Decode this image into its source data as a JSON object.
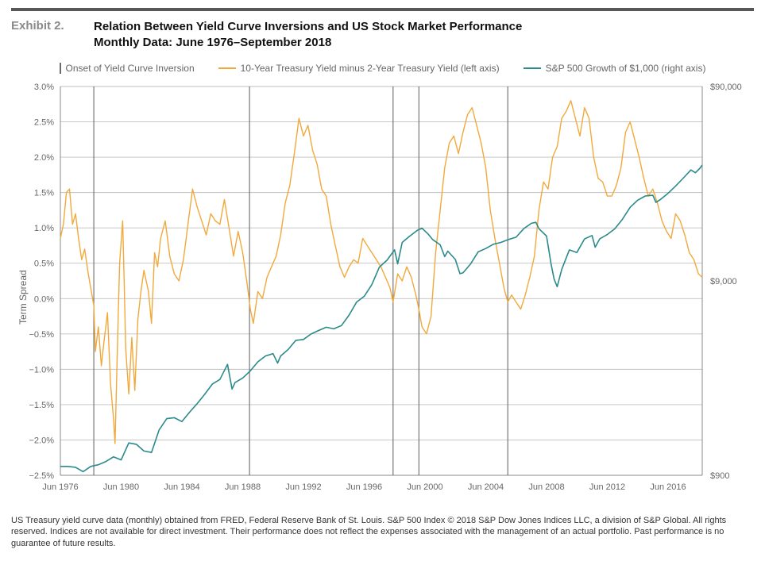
{
  "exhibit_number": "Exhibit 2.",
  "title_line1": "Relation Between Yield Curve Inversions and US Stock Market Performance",
  "title_line2": "Monthly Data: June 1976–September 2018",
  "legend": {
    "inversion": "Onset of Yield Curve Inversion",
    "spread": "10-Year Treasury Yield minus 2-Year Treasury Yield (left axis)",
    "sp500": "S&P 500 Growth of $1,000 (right axis)"
  },
  "left_axis": {
    "title": "Term Spread",
    "min": -2.5,
    "max": 3.0,
    "step": 0.5,
    "ticks": [
      "3.0%",
      "2.5%",
      "2.0%",
      "1.5%",
      "1.0%",
      "0.5%",
      "0.0%",
      "−0.5%",
      "−1.0%",
      "−1.5%",
      "−2.0%",
      "−2.5%"
    ]
  },
  "right_axis": {
    "type": "log",
    "ticks": [
      {
        "value": 90000,
        "label": "$90,000"
      },
      {
        "value": 9000,
        "label": "$9,000"
      },
      {
        "value": 900,
        "label": "$900"
      }
    ]
  },
  "x_axis": {
    "min": 1976.5,
    "max": 2018.75,
    "tick_years": [
      1976,
      1980,
      1984,
      1988,
      1992,
      1996,
      2000,
      2004,
      2008,
      2012,
      2016
    ],
    "tick_label_prefix": "Jun "
  },
  "inversion_years": [
    1978.7,
    1988.95,
    1998.4,
    2000.1,
    2005.95
  ],
  "colors": {
    "spread": "#f2a93c",
    "sp500": "#2b8a8a",
    "inversion": "#6b6b6b",
    "grid": "#bfbfbf",
    "axis": "#888888",
    "text": "#666666",
    "legend_text": "#707070"
  },
  "line_width": {
    "spread": 1.4,
    "sp500": 1.6,
    "inversion": 1.1,
    "grid": 0.9
  },
  "spread_series": [
    [
      1976.5,
      0.85
    ],
    [
      1976.7,
      1.05
    ],
    [
      1976.9,
      1.5
    ],
    [
      1977.1,
      1.55
    ],
    [
      1977.3,
      1.05
    ],
    [
      1977.5,
      1.2
    ],
    [
      1977.7,
      0.85
    ],
    [
      1977.9,
      0.55
    ],
    [
      1978.1,
      0.7
    ],
    [
      1978.3,
      0.4
    ],
    [
      1978.5,
      0.15
    ],
    [
      1978.7,
      -0.1
    ],
    [
      1978.8,
      -0.75
    ],
    [
      1979.0,
      -0.4
    ],
    [
      1979.2,
      -0.95
    ],
    [
      1979.4,
      -0.55
    ],
    [
      1979.6,
      -0.2
    ],
    [
      1979.8,
      -1.2
    ],
    [
      1980.0,
      -1.7
    ],
    [
      1980.1,
      -2.05
    ],
    [
      1980.3,
      -0.3
    ],
    [
      1980.4,
      0.5
    ],
    [
      1980.6,
      1.1
    ],
    [
      1980.7,
      0.25
    ],
    [
      1980.8,
      -0.7
    ],
    [
      1981.0,
      -1.35
    ],
    [
      1981.2,
      -0.55
    ],
    [
      1981.4,
      -1.3
    ],
    [
      1981.6,
      -0.3
    ],
    [
      1981.8,
      0.1
    ],
    [
      1982.0,
      0.4
    ],
    [
      1982.3,
      0.1
    ],
    [
      1982.5,
      -0.35
    ],
    [
      1982.7,
      0.65
    ],
    [
      1982.9,
      0.45
    ],
    [
      1983.1,
      0.85
    ],
    [
      1983.4,
      1.1
    ],
    [
      1983.7,
      0.6
    ],
    [
      1984.0,
      0.35
    ],
    [
      1984.3,
      0.25
    ],
    [
      1984.6,
      0.55
    ],
    [
      1984.9,
      1.05
    ],
    [
      1985.2,
      1.55
    ],
    [
      1985.5,
      1.3
    ],
    [
      1985.8,
      1.1
    ],
    [
      1986.1,
      0.9
    ],
    [
      1986.4,
      1.2
    ],
    [
      1986.7,
      1.1
    ],
    [
      1987.0,
      1.05
    ],
    [
      1987.3,
      1.4
    ],
    [
      1987.6,
      1.0
    ],
    [
      1987.9,
      0.6
    ],
    [
      1988.2,
      0.95
    ],
    [
      1988.5,
      0.65
    ],
    [
      1988.8,
      0.2
    ],
    [
      1989.0,
      -0.15
    ],
    [
      1989.2,
      -0.35
    ],
    [
      1989.5,
      0.1
    ],
    [
      1989.8,
      0.0
    ],
    [
      1990.1,
      0.3
    ],
    [
      1990.4,
      0.45
    ],
    [
      1990.7,
      0.6
    ],
    [
      1991.0,
      0.9
    ],
    [
      1991.3,
      1.35
    ],
    [
      1991.6,
      1.6
    ],
    [
      1991.9,
      2.05
    ],
    [
      1992.2,
      2.55
    ],
    [
      1992.5,
      2.3
    ],
    [
      1992.8,
      2.45
    ],
    [
      1993.1,
      2.1
    ],
    [
      1993.4,
      1.9
    ],
    [
      1993.7,
      1.55
    ],
    [
      1994.0,
      1.45
    ],
    [
      1994.3,
      1.05
    ],
    [
      1994.6,
      0.75
    ],
    [
      1994.9,
      0.45
    ],
    [
      1995.2,
      0.3
    ],
    [
      1995.5,
      0.45
    ],
    [
      1995.8,
      0.55
    ],
    [
      1996.1,
      0.5
    ],
    [
      1996.4,
      0.85
    ],
    [
      1996.7,
      0.75
    ],
    [
      1997.0,
      0.65
    ],
    [
      1997.3,
      0.55
    ],
    [
      1997.6,
      0.45
    ],
    [
      1997.9,
      0.3
    ],
    [
      1998.2,
      0.15
    ],
    [
      1998.4,
      -0.05
    ],
    [
      1998.7,
      0.35
    ],
    [
      1999.0,
      0.25
    ],
    [
      1999.3,
      0.45
    ],
    [
      1999.6,
      0.3
    ],
    [
      1999.9,
      0.05
    ],
    [
      2000.1,
      -0.15
    ],
    [
      2000.3,
      -0.4
    ],
    [
      2000.6,
      -0.5
    ],
    [
      2000.9,
      -0.25
    ],
    [
      2001.2,
      0.65
    ],
    [
      2001.5,
      1.25
    ],
    [
      2001.8,
      1.85
    ],
    [
      2002.1,
      2.2
    ],
    [
      2002.4,
      2.3
    ],
    [
      2002.7,
      2.05
    ],
    [
      2003.0,
      2.35
    ],
    [
      2003.3,
      2.6
    ],
    [
      2003.6,
      2.7
    ],
    [
      2003.9,
      2.45
    ],
    [
      2004.2,
      2.2
    ],
    [
      2004.5,
      1.85
    ],
    [
      2004.8,
      1.25
    ],
    [
      2005.1,
      0.85
    ],
    [
      2005.4,
      0.5
    ],
    [
      2005.7,
      0.15
    ],
    [
      2005.95,
      -0.05
    ],
    [
      2006.2,
      0.05
    ],
    [
      2006.5,
      -0.05
    ],
    [
      2006.8,
      -0.15
    ],
    [
      2007.1,
      0.05
    ],
    [
      2007.4,
      0.3
    ],
    [
      2007.7,
      0.6
    ],
    [
      2008.0,
      1.25
    ],
    [
      2008.3,
      1.65
    ],
    [
      2008.6,
      1.55
    ],
    [
      2008.9,
      2.0
    ],
    [
      2009.2,
      2.15
    ],
    [
      2009.5,
      2.55
    ],
    [
      2009.8,
      2.65
    ],
    [
      2010.1,
      2.8
    ],
    [
      2010.4,
      2.55
    ],
    [
      2010.7,
      2.3
    ],
    [
      2011.0,
      2.7
    ],
    [
      2011.3,
      2.55
    ],
    [
      2011.6,
      2.0
    ],
    [
      2011.9,
      1.7
    ],
    [
      2012.2,
      1.65
    ],
    [
      2012.5,
      1.45
    ],
    [
      2012.8,
      1.45
    ],
    [
      2013.1,
      1.6
    ],
    [
      2013.4,
      1.85
    ],
    [
      2013.7,
      2.35
    ],
    [
      2014.0,
      2.5
    ],
    [
      2014.3,
      2.25
    ],
    [
      2014.6,
      2.0
    ],
    [
      2014.9,
      1.7
    ],
    [
      2015.2,
      1.45
    ],
    [
      2015.5,
      1.55
    ],
    [
      2015.8,
      1.35
    ],
    [
      2016.1,
      1.1
    ],
    [
      2016.4,
      0.95
    ],
    [
      2016.7,
      0.85
    ],
    [
      2017.0,
      1.2
    ],
    [
      2017.3,
      1.1
    ],
    [
      2017.6,
      0.9
    ],
    [
      2017.9,
      0.65
    ],
    [
      2018.2,
      0.55
    ],
    [
      2018.5,
      0.35
    ],
    [
      2018.75,
      0.3
    ]
  ],
  "sp500_series": [
    [
      1976.5,
      1000
    ],
    [
      1977.0,
      1000
    ],
    [
      1977.5,
      990
    ],
    [
      1978.0,
      940
    ],
    [
      1978.5,
      1000
    ],
    [
      1979.0,
      1020
    ],
    [
      1979.5,
      1060
    ],
    [
      1980.0,
      1120
    ],
    [
      1980.5,
      1080
    ],
    [
      1981.0,
      1320
    ],
    [
      1981.5,
      1300
    ],
    [
      1982.0,
      1200
    ],
    [
      1982.5,
      1180
    ],
    [
      1983.0,
      1540
    ],
    [
      1983.5,
      1760
    ],
    [
      1984.0,
      1780
    ],
    [
      1984.5,
      1700
    ],
    [
      1985.0,
      1900
    ],
    [
      1985.5,
      2100
    ],
    [
      1986.0,
      2350
    ],
    [
      1986.5,
      2650
    ],
    [
      1987.0,
      2800
    ],
    [
      1987.5,
      3350
    ],
    [
      1987.8,
      2500
    ],
    [
      1988.0,
      2700
    ],
    [
      1988.5,
      2850
    ],
    [
      1989.0,
      3100
    ],
    [
      1989.5,
      3450
    ],
    [
      1990.0,
      3700
    ],
    [
      1990.5,
      3800
    ],
    [
      1990.8,
      3400
    ],
    [
      1991.0,
      3700
    ],
    [
      1991.5,
      4000
    ],
    [
      1992.0,
      4450
    ],
    [
      1992.5,
      4500
    ],
    [
      1993.0,
      4800
    ],
    [
      1993.5,
      5000
    ],
    [
      1994.0,
      5200
    ],
    [
      1994.5,
      5100
    ],
    [
      1995.0,
      5300
    ],
    [
      1995.5,
      6000
    ],
    [
      1996.0,
      7000
    ],
    [
      1996.5,
      7500
    ],
    [
      1997.0,
      8600
    ],
    [
      1997.5,
      10600
    ],
    [
      1998.0,
      11500
    ],
    [
      1998.5,
      13000
    ],
    [
      1998.7,
      11000
    ],
    [
      1999.0,
      14200
    ],
    [
      1999.5,
      15300
    ],
    [
      2000.0,
      16400
    ],
    [
      2000.3,
      16800
    ],
    [
      2000.7,
      15700
    ],
    [
      2001.0,
      14700
    ],
    [
      2001.5,
      13800
    ],
    [
      2001.8,
      12000
    ],
    [
      2002.0,
      12800
    ],
    [
      2002.5,
      11600
    ],
    [
      2002.8,
      9800
    ],
    [
      2003.0,
      9900
    ],
    [
      2003.5,
      11000
    ],
    [
      2004.0,
      12700
    ],
    [
      2004.5,
      13200
    ],
    [
      2005.0,
      13900
    ],
    [
      2005.5,
      14200
    ],
    [
      2006.0,
      14700
    ],
    [
      2006.5,
      15100
    ],
    [
      2007.0,
      16700
    ],
    [
      2007.5,
      17800
    ],
    [
      2007.8,
      18000
    ],
    [
      2008.0,
      16700
    ],
    [
      2008.5,
      15300
    ],
    [
      2008.8,
      11000
    ],
    [
      2009.0,
      9200
    ],
    [
      2009.2,
      8400
    ],
    [
      2009.5,
      10300
    ],
    [
      2010.0,
      13000
    ],
    [
      2010.5,
      12600
    ],
    [
      2011.0,
      14800
    ],
    [
      2011.5,
      15400
    ],
    [
      2011.7,
      13400
    ],
    [
      2012.0,
      14800
    ],
    [
      2012.5,
      15600
    ],
    [
      2013.0,
      16700
    ],
    [
      2013.5,
      18700
    ],
    [
      2014.0,
      21500
    ],
    [
      2014.5,
      23400
    ],
    [
      2015.0,
      24600
    ],
    [
      2015.5,
      24800
    ],
    [
      2015.7,
      22800
    ],
    [
      2016.0,
      23600
    ],
    [
      2016.5,
      25400
    ],
    [
      2017.0,
      27700
    ],
    [
      2017.5,
      30400
    ],
    [
      2018.0,
      33500
    ],
    [
      2018.3,
      32400
    ],
    [
      2018.6,
      34200
    ],
    [
      2018.75,
      35500
    ]
  ],
  "footer": "US Treasury yield curve data (monthly) obtained from FRED, Federal Reserve Bank of St. Louis. S&P 500 Index © 2018 S&P Dow Jones Indices LLC, a division of S&P Global. All rights reserved. Indices are not available for direct investment. Their performance does not reflect the expenses associated with the management of an actual portfolio. Past performance is no guarantee of future results."
}
